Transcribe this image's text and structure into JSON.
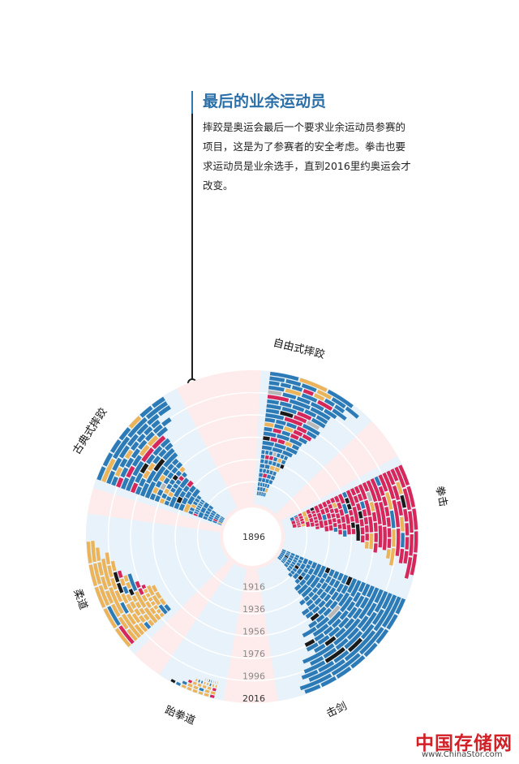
{
  "heading": {
    "title": "最后的业余运动员",
    "body": "摔跤是奥运会最后一个要求业余运动员参赛的项目，这是为了参赛者的安全考虑。拳击也要求运动员是业余选手，直到2016里约奥运会才改变。"
  },
  "colors": {
    "bg_pink": "#fdeceb",
    "bg_blue": "#e8f2fa",
    "blue": "#2c7bb6",
    "red": "#d6265a",
    "yellow": "#ecb45a",
    "black": "#1a1a1a",
    "green": "#3a9d3e",
    "grey": "#b8b8b8",
    "accent_title": "#2a6fa8"
  },
  "chart_data": {
    "type": "radial-timeline",
    "radial_axis": {
      "label_positions": [
        "1896",
        "1916",
        "1936",
        "1956",
        "1976",
        "1996",
        "2016"
      ],
      "range": [
        1896,
        2016
      ]
    },
    "legend": "none",
    "sports": [
      {
        "name": "自由式摔跤",
        "approx_first_year": 1904,
        "approx_bars": 27,
        "dominant_colors": [
          "blue",
          "red",
          "yellow"
        ]
      },
      {
        "name": "拳击",
        "approx_first_year": 1904,
        "approx_bars": 28,
        "dominant_colors": [
          "red",
          "blue",
          "yellow"
        ]
      },
      {
        "name": "击剑",
        "approx_first_year": 1896,
        "approx_bars": 28,
        "dominant_colors": [
          "blue"
        ]
      },
      {
        "name": "跆拳道",
        "approx_first_year": 2000,
        "approx_bars": 5,
        "dominant_colors": [
          "yellow",
          "blue",
          "red"
        ]
      },
      {
        "name": "柔道",
        "approx_first_year": 1964,
        "approx_bars": 13,
        "dominant_colors": [
          "yellow",
          "blue",
          "red"
        ]
      },
      {
        "name": "古典式摔跤",
        "approx_first_year": 1896,
        "approx_bars": 26,
        "dominant_colors": [
          "blue",
          "yellow",
          "red"
        ]
      }
    ]
  },
  "watermark": {
    "cn": "中国存储网",
    "url": "www.ChinaStor.com"
  }
}
